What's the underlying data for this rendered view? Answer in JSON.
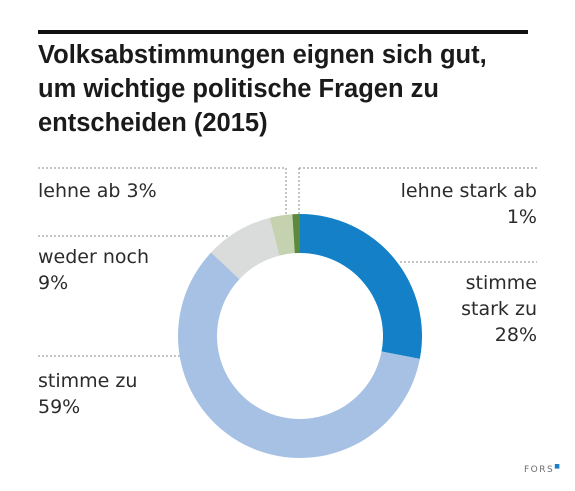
{
  "title_lines": [
    "Volksabstimmungen eignen sich gut,",
    "um wichtige politische Fragen zu",
    "entscheiden (2015)"
  ],
  "chart_data": {
    "type": "pie",
    "donut": true,
    "title": "Volksabstimmungen eignen sich gut, um wichtige politische Fragen zu entscheiden (2015)",
    "slices": [
      {
        "name": "stimme stark zu",
        "value": 28,
        "color": "#1380c7",
        "label_lines": [
          "stimme",
          "stark zu",
          "28%"
        ]
      },
      {
        "name": "stimme zu",
        "value": 59,
        "color": "#a6c1e4",
        "label_lines": [
          "stimme zu",
          "59%"
        ]
      },
      {
        "name": "weder noch",
        "value": 9,
        "color": "#dadbdb",
        "label_lines": [
          "weder noch",
          "9%"
        ]
      },
      {
        "name": "lehne ab",
        "value": 3,
        "color": "#c5d2b0",
        "label_lines": [
          "lehne ab 3%"
        ]
      },
      {
        "name": "lehne stark ab",
        "value": 1,
        "color": "#5c8a3c",
        "label_lines": [
          "lehne stark ab",
          "1%"
        ]
      }
    ]
  },
  "brand": {
    "name": "FORS",
    "mark": "■"
  }
}
